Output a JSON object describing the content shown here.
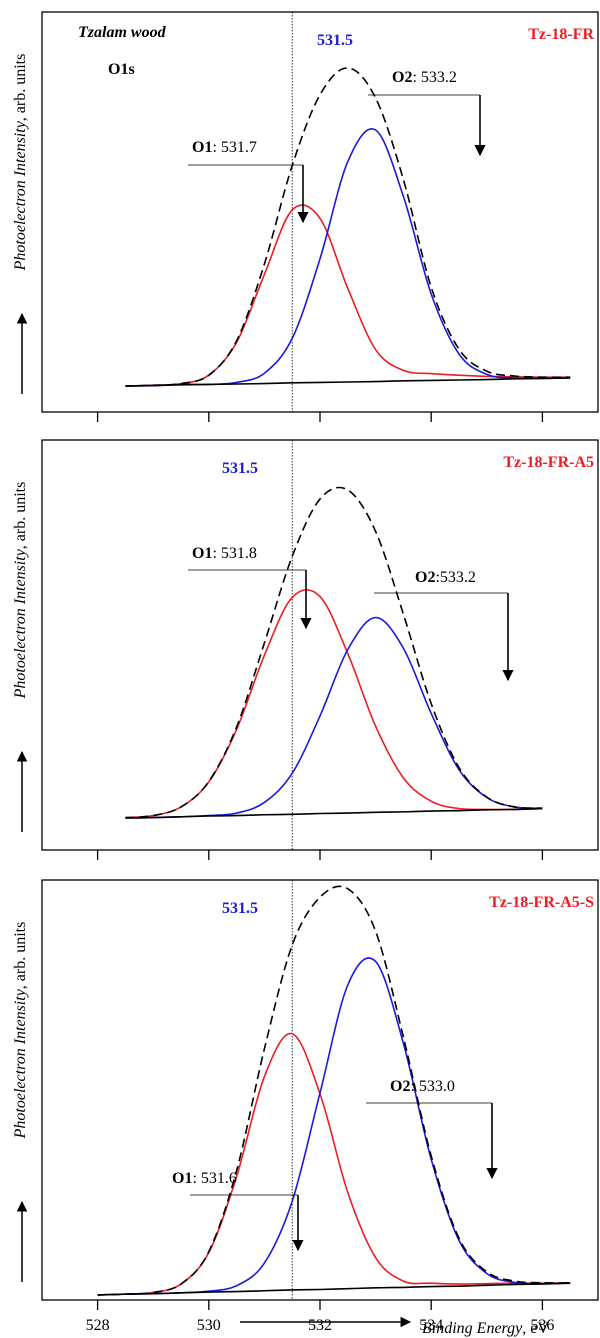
{
  "chart_data": [
    {
      "type": "line",
      "title": "Tz-18-FR",
      "subtitle": "Tzalam wood",
      "label": "O1s",
      "ylabel": [
        "Photoelectron Intensity",
        ", arb. units"
      ],
      "xlim": [
        527,
        537
      ],
      "xticks": [
        528,
        530,
        532,
        534,
        536
      ],
      "ylim": [
        0,
        100
      ],
      "ref_line": 531.5,
      "x": [
        528.5,
        529,
        529.5,
        530,
        530.5,
        531,
        531.5,
        532,
        532.5,
        533,
        533.5,
        534,
        534.5,
        535,
        535.5,
        536,
        536.5
      ],
      "series": [
        {
          "name": "O1",
          "color": "#ee1c24",
          "values": [
            6.5,
            6.7,
            7.1,
            9.2,
            17.4,
            34.4,
            50.5,
            48.4,
            30.9,
            15.6,
            10.4,
            9.6,
            9.2,
            8.9,
            8.8,
            8.7,
            8.7
          ]
        },
        {
          "name": "O2",
          "color": "#1a1adc",
          "values": [
            6.5,
            6.6,
            6.9,
            6.9,
            7.4,
            9.7,
            18.4,
            38.3,
            62.6,
            70.5,
            53.9,
            29.5,
            14.5,
            9.4,
            8.5,
            8.4,
            8.5
          ]
        },
        {
          "color": "#000000",
          "dash": true,
          "values": [
            6.5,
            6.7,
            7.1,
            9.2,
            17.8,
            37.0,
            61.6,
            79.3,
            86.0,
            78.5,
            58.1,
            31.2,
            15.7,
            10.2,
            9.0,
            8.7,
            8.7
          ]
        },
        {
          "color": "#000000",
          "values": [
            6.5,
            6.6,
            6.8,
            6.9,
            7.0,
            7.1,
            7.3,
            7.4,
            7.5,
            7.6,
            7.8,
            7.9,
            8.0,
            8.1,
            8.3,
            8.4,
            8.5
          ]
        }
      ],
      "annotations": [
        {
          "bold": "O1",
          "text": ": 531.7"
        },
        {
          "bold": "O2",
          "text": ": 533.2"
        }
      ]
    },
    {
      "type": "line",
      "title": "Tz-18-FR-A5",
      "ylabel": [
        "Photoelectron Intensity",
        ", arb. units"
      ],
      "xlim": [
        527,
        537
      ],
      "xticks": [
        528,
        530,
        532,
        534,
        536
      ],
      "ylim": [
        0,
        100
      ],
      "ref_line": 531.5,
      "x": [
        528.5,
        529,
        529.5,
        530,
        530.5,
        531,
        531.5,
        532,
        532.5,
        533,
        533.5,
        534,
        534.5,
        535,
        535.5,
        536
      ],
      "series": [
        {
          "name": "O1",
          "color": "#ee1c24",
          "values": [
            7.9,
            8.4,
            10.5,
            16.6,
            29.4,
            47.5,
            61.6,
            61.8,
            47.9,
            30.2,
            17.6,
            11.9,
            10.1,
            9.9,
            9.9,
            10.1
          ]
        },
        {
          "name": "O2",
          "color": "#1a1adc",
          "values": [
            7.8,
            7.9,
            8.1,
            8.4,
            9.0,
            11.6,
            18.7,
            32.7,
            48.9,
            56.7,
            49.2,
            33.3,
            19.6,
            12.8,
            10.5,
            10.2
          ]
        },
        {
          "color": "#000000",
          "dash": true,
          "values": [
            7.9,
            8.4,
            10.5,
            16.7,
            30.0,
            50.5,
            71.6,
            85.6,
            87.8,
            77.7,
            57.5,
            35.7,
            20.1,
            12.9,
            10.5,
            10.2
          ]
        },
        {
          "color": "#000000",
          "values": [
            7.8,
            7.9,
            8.1,
            8.3,
            8.4,
            8.6,
            8.7,
            8.9,
            9.0,
            9.2,
            9.3,
            9.5,
            9.6,
            9.8,
            9.9,
            10.1
          ]
        }
      ],
      "annotations": [
        {
          "bold": "O1",
          "text": ": 531.8"
        },
        {
          "bold": "O2",
          "text": ":533.2"
        }
      ]
    },
    {
      "type": "line",
      "title": "Tz-18-FR-A5-S",
      "ylabel": [
        "Photoelectron Intensity",
        ", arb. units"
      ],
      "xlabel": [
        "Binding Energy",
        ", eV"
      ],
      "xlim": [
        527,
        537
      ],
      "xticks": [
        528,
        530,
        532,
        534,
        536
      ],
      "ylim": [
        0,
        100
      ],
      "ref_line": 531.5,
      "x": [
        528,
        528.5,
        529,
        529.5,
        530,
        530.5,
        531,
        531.5,
        532,
        532.5,
        533,
        533.5,
        534,
        534.5,
        535,
        535.5,
        536,
        536.5
      ],
      "series": [
        {
          "name": "O1",
          "color": "#ee1c24",
          "values": [
            1.2,
            1.4,
            1.8,
            3.8,
            11.3,
            29.4,
            53.2,
            63.4,
            49.1,
            25.6,
            10.1,
            4.5,
            4.0,
            3.8,
            3.9,
            4.0,
            4.0,
            4.1
          ]
        },
        {
          "name": "O2",
          "color": "#1a1adc",
          "values": [
            1.2,
            1.4,
            1.5,
            1.7,
            2.1,
            3.4,
            8.8,
            23.5,
            49.3,
            75.0,
            80.6,
            61.1,
            33.5,
            14.2,
            6.3,
            4.2,
            3.9,
            4.0
          ]
        },
        {
          "color": "#000000",
          "dash": true,
          "values": [
            1.2,
            1.4,
            1.8,
            3.8,
            11.5,
            30.8,
            59.8,
            84.5,
            95.9,
            97.9,
            87.8,
            62.6,
            34.3,
            14.7,
            6.7,
            4.5,
            4.1,
            4.1
          ]
        },
        {
          "color": "#000000",
          "values": [
            1.2,
            1.4,
            1.5,
            1.7,
            1.9,
            2.0,
            2.2,
            2.4,
            2.5,
            2.7,
            2.9,
            3.0,
            3.2,
            3.3,
            3.5,
            3.7,
            3.8,
            4.0
          ]
        }
      ],
      "annotations": [
        {
          "bold": "O1",
          "text": ": 531.6"
        },
        {
          "bold": "O2",
          "text": ": 533.0"
        }
      ]
    }
  ]
}
